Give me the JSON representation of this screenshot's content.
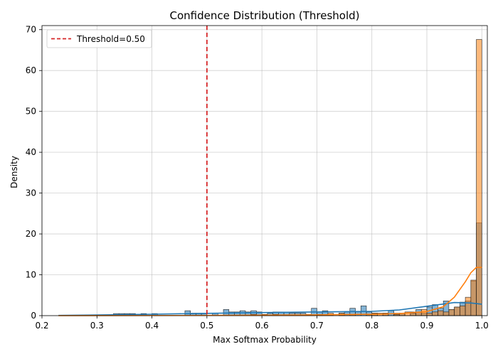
{
  "chart_data": {
    "type": "histogram",
    "title": "Confidence Distribution (Threshold)",
    "xlabel": "Max Softmax Probability",
    "ylabel": "Density",
    "xlim": [
      0.2,
      1.01
    ],
    "ylim": [
      0,
      71
    ],
    "xticks": [
      "0.2",
      "0.3",
      "0.4",
      "0.5",
      "0.6",
      "0.7",
      "0.8",
      "0.9",
      "1.0"
    ],
    "yticks": [
      "0",
      "10",
      "20",
      "30",
      "40",
      "50",
      "60",
      "70"
    ],
    "grid": true,
    "legend": {
      "placement": "upper-left",
      "entries": [
        "Threshold=0.50"
      ]
    },
    "threshold": {
      "x": 0.5,
      "label": "Threshold=0.50",
      "color": "#d62728",
      "style": "dashed"
    },
    "bin_width": 0.01,
    "series": [
      {
        "color": "#1f77b4",
        "bars": [
          [
            0.33,
            0.5
          ],
          [
            0.34,
            0.5
          ],
          [
            0.35,
            0.5
          ],
          [
            0.36,
            0.5
          ],
          [
            0.38,
            0.5
          ],
          [
            0.4,
            0.5
          ],
          [
            0.46,
            1.2
          ],
          [
            0.47,
            0.6
          ],
          [
            0.48,
            0.6
          ],
          [
            0.49,
            0.6
          ],
          [
            0.51,
            0.6
          ],
          [
            0.53,
            1.5
          ],
          [
            0.54,
            0.9
          ],
          [
            0.55,
            0.9
          ],
          [
            0.56,
            1.2
          ],
          [
            0.57,
            0.9
          ],
          [
            0.58,
            1.2
          ],
          [
            0.59,
            0.9
          ],
          [
            0.61,
            0.6
          ],
          [
            0.62,
            0.9
          ],
          [
            0.63,
            0.9
          ],
          [
            0.64,
            0.9
          ],
          [
            0.65,
            0.6
          ],
          [
            0.66,
            0.6
          ],
          [
            0.67,
            0.6
          ],
          [
            0.69,
            1.8
          ],
          [
            0.7,
            0.9
          ],
          [
            0.71,
            1.2
          ],
          [
            0.74,
            0.6
          ],
          [
            0.75,
            0.9
          ],
          [
            0.76,
            1.8
          ],
          [
            0.77,
            0.9
          ],
          [
            0.78,
            2.4
          ],
          [
            0.79,
            0.9
          ],
          [
            0.8,
            0.6
          ],
          [
            0.82,
            0.6
          ],
          [
            0.83,
            1.2
          ],
          [
            0.84,
            0.6
          ],
          [
            0.85,
            0.6
          ],
          [
            0.87,
            0.9
          ],
          [
            0.88,
            1.5
          ],
          [
            0.89,
            0.6
          ],
          [
            0.9,
            2.1
          ],
          [
            0.91,
            2.7
          ],
          [
            0.92,
            1.8
          ],
          [
            0.93,
            3.6
          ],
          [
            0.94,
            1.5
          ],
          [
            0.95,
            2.1
          ],
          [
            0.96,
            3.3
          ],
          [
            0.97,
            3.6
          ],
          [
            0.98,
            8.5
          ],
          [
            0.99,
            22.7
          ]
        ],
        "kde": [
          [
            0.23,
            0.05
          ],
          [
            0.3,
            0.15
          ],
          [
            0.4,
            0.35
          ],
          [
            0.5,
            0.55
          ],
          [
            0.6,
            0.75
          ],
          [
            0.7,
            0.9
          ],
          [
            0.8,
            1.05
          ],
          [
            0.85,
            1.4
          ],
          [
            0.9,
            2.3
          ],
          [
            0.95,
            3.2
          ],
          [
            0.98,
            3.1
          ],
          [
            1.0,
            2.8
          ]
        ]
      },
      {
        "color": "#ff7f0e",
        "bars": [
          [
            0.58,
            0.3
          ],
          [
            0.6,
            0.3
          ],
          [
            0.62,
            0.3
          ],
          [
            0.68,
            0.3
          ],
          [
            0.7,
            0.3
          ],
          [
            0.72,
            0.6
          ],
          [
            0.74,
            0.6
          ],
          [
            0.76,
            0.3
          ],
          [
            0.79,
            0.3
          ],
          [
            0.8,
            0.6
          ],
          [
            0.81,
            0.6
          ],
          [
            0.82,
            0.6
          ],
          [
            0.84,
            0.3
          ],
          [
            0.85,
            0.6
          ],
          [
            0.86,
            0.9
          ],
          [
            0.87,
            0.6
          ],
          [
            0.88,
            0.9
          ],
          [
            0.89,
            1.5
          ],
          [
            0.9,
            0.6
          ],
          [
            0.91,
            0.9
          ],
          [
            0.92,
            1.2
          ],
          [
            0.93,
            0.9
          ],
          [
            0.94,
            1.5
          ],
          [
            0.95,
            2.1
          ],
          [
            0.96,
            2.4
          ],
          [
            0.97,
            4.5
          ],
          [
            0.98,
            8.7
          ],
          [
            0.99,
            67.6
          ]
        ],
        "kde": [
          [
            0.23,
            0.0
          ],
          [
            0.5,
            0.05
          ],
          [
            0.7,
            0.2
          ],
          [
            0.8,
            0.35
          ],
          [
            0.85,
            0.5
          ],
          [
            0.9,
            1.0
          ],
          [
            0.93,
            2.2
          ],
          [
            0.95,
            4.5
          ],
          [
            0.97,
            8.3
          ],
          [
            0.98,
            10.5
          ],
          [
            0.99,
            11.8
          ],
          [
            1.0,
            11.8
          ]
        ]
      }
    ]
  }
}
